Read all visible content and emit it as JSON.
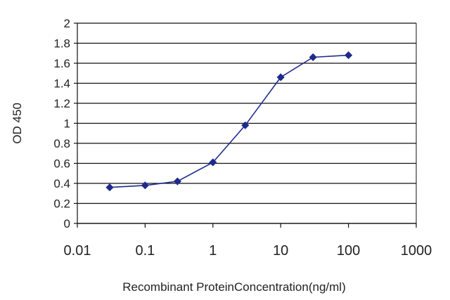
{
  "chart_data": {
    "type": "line",
    "xlabel": "Recombinant ProteinConcentration(ng/ml)",
    "ylabel": "OD 450",
    "x_scale": "log",
    "xlim": [
      0.01,
      1000
    ],
    "ylim": [
      0,
      2
    ],
    "grid": true,
    "x_ticks": [
      0.01,
      0.1,
      1,
      10,
      100,
      1000
    ],
    "x_tick_labels": [
      "0.01",
      "0.1",
      "1",
      "10",
      "100",
      "1000"
    ],
    "y_ticks": [
      0,
      0.2,
      0.4,
      0.6,
      0.8,
      1,
      1.2,
      1.4,
      1.6,
      1.8,
      2
    ],
    "y_tick_labels": [
      "0",
      "0.2",
      "0.4",
      "0.6",
      "0.8",
      "1",
      "1.2",
      "1.4",
      "1.6",
      "1.8",
      "2"
    ],
    "series": [
      {
        "color": "#1f2a8c",
        "marker": "diamond",
        "x": [
          0.03,
          0.1,
          0.3,
          1,
          3,
          10,
          30,
          100
        ],
        "y": [
          0.36,
          0.38,
          0.42,
          0.61,
          0.98,
          1.46,
          1.66,
          1.68
        ]
      }
    ],
    "colors": {
      "grid": "#111111",
      "axis": "#111111",
      "line": "#1f2a8c"
    }
  }
}
